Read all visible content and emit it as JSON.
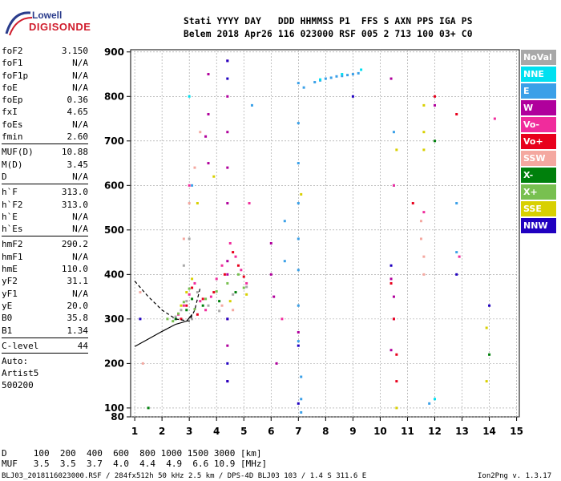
{
  "logo": {
    "line1": "Lowell",
    "line2": "DIGISONDE"
  },
  "header": {
    "line1": "Stati YYYY DAY   DDD HHMMSS P1  FFS S AXN PPS IGA PS",
    "line2": "Belem 2018 Apr26 116 023000 RSF 005 2 713 100 03+ C0"
  },
  "params": {
    "group1": [
      {
        "name": "foF2",
        "value": "3.150"
      },
      {
        "name": "foF1",
        "value": "N/A"
      },
      {
        "name": "foF1p",
        "value": "N/A"
      },
      {
        "name": "foE",
        "value": "N/A"
      },
      {
        "name": "foEp",
        "value": "0.36"
      },
      {
        "name": "fxI",
        "value": "4.65"
      },
      {
        "name": "foEs",
        "value": "N/A"
      },
      {
        "name": "fmin",
        "value": "2.60"
      }
    ],
    "group2": [
      {
        "name": "MUF(D)",
        "value": "10.88"
      },
      {
        "name": "M(D)",
        "value": "3.45"
      },
      {
        "name": "D",
        "value": "N/A"
      }
    ],
    "group3": [
      {
        "name": "h`F",
        "value": "313.0"
      },
      {
        "name": "h`F2",
        "value": "313.0"
      },
      {
        "name": "h`E",
        "value": "N/A"
      },
      {
        "name": "h`Es",
        "value": "N/A"
      }
    ],
    "group4": [
      {
        "name": "hmF2",
        "value": "290.2"
      },
      {
        "name": "hmF1",
        "value": "N/A"
      },
      {
        "name": "hmE",
        "value": "110.0"
      },
      {
        "name": "yF2",
        "value": "31.1"
      },
      {
        "name": "yF1",
        "value": "N/A"
      },
      {
        "name": "yE",
        "value": "20.0"
      },
      {
        "name": "B0",
        "value": "35.8"
      },
      {
        "name": "B1",
        "value": "1.34"
      }
    ],
    "group5": [
      {
        "name": "C-level",
        "value": "44"
      }
    ],
    "auto": [
      "Auto:",
      "Artist5",
      "500200"
    ]
  },
  "legend": [
    {
      "label": "NoVal",
      "color": "#a8a8a8"
    },
    {
      "label": "NNE",
      "color": "#00e0f0"
    },
    {
      "label": "E",
      "color": "#3aa0e8"
    },
    {
      "label": "W",
      "color": "#b0009c"
    },
    {
      "label": "Vo-",
      "color": "#f02c9c"
    },
    {
      "label": "Vo+",
      "color": "#e8001c"
    },
    {
      "label": "SSW",
      "color": "#f4a8a0"
    },
    {
      "label": "X-",
      "color": "#00800c"
    },
    {
      "label": "X+",
      "color": "#78c050"
    },
    {
      "label": "SSE",
      "color": "#d8d000"
    },
    {
      "label": "NNW",
      "color": "#2000c0"
    }
  ],
  "chart_data": {
    "type": "scatter",
    "title": "",
    "xlabel": "",
    "ylabel": "",
    "xlim": [
      0.85,
      15.1
    ],
    "ylim": [
      80,
      905
    ],
    "xticks": [
      1,
      2,
      3,
      4,
      5,
      6,
      7,
      8,
      9,
      10,
      11,
      12,
      13,
      14,
      15
    ],
    "yticks": [
      80,
      100,
      200,
      300,
      400,
      500,
      600,
      700,
      800,
      900
    ],
    "grid": true,
    "point_groups": [
      {
        "name": "NoVal",
        "color": "#a8a8a8",
        "x": [
          2.5,
          2.7,
          2.9,
          3.1,
          3.3,
          3.7,
          4.1,
          4.6,
          5.1,
          2.8,
          3.0
        ],
        "y": [
          305,
          320,
          340,
          300,
          360,
          330,
          318,
          355,
          372,
          420,
          480
        ]
      },
      {
        "name": "E",
        "color": "#3aa0e8",
        "x": [
          7.0,
          7.0,
          7.0,
          7.0,
          7.0,
          7.0,
          7.0,
          7.0,
          7.1,
          7.1,
          7.1,
          7.2,
          7.6,
          7.8,
          8.0,
          8.2,
          8.4,
          8.6,
          8.8,
          9.0,
          9.2,
          10.5,
          10.5,
          11.8,
          12.8,
          12.8,
          6.5,
          6.5,
          5.3,
          3.1
        ],
        "y": [
          830,
          740,
          650,
          560,
          480,
          410,
          330,
          250,
          170,
          120,
          90,
          820,
          832,
          836,
          840,
          842,
          845,
          846,
          848,
          850,
          852,
          720,
          600,
          110,
          560,
          450,
          520,
          430,
          780,
          600
        ]
      },
      {
        "name": "W",
        "color": "#b0009c",
        "x": [
          4.4,
          4.4,
          4.4,
          4.4,
          4.4,
          4.4,
          4.4,
          4.4,
          4.4,
          4.4,
          3.7,
          3.7,
          3.7,
          3.6,
          6.0,
          6.0,
          6.1,
          6.2,
          7.0,
          10.4,
          10.5,
          10.5,
          10.4,
          12.0,
          10.4
        ],
        "y": [
          880,
          800,
          720,
          640,
          560,
          430,
          400,
          300,
          240,
          160,
          850,
          760,
          650,
          710,
          470,
          400,
          350,
          200,
          270,
          390,
          350,
          300,
          230,
          780,
          840
        ]
      },
      {
        "name": "Vo-",
        "color": "#f02c9c",
        "x": [
          2.6,
          2.8,
          3.0,
          3.2,
          3.4,
          3.6,
          3.8,
          4.0,
          4.2,
          4.5,
          4.7,
          4.9,
          5.1,
          6.4,
          10.5,
          11.6,
          3.0,
          5.2,
          12.9,
          14.2
        ],
        "y": [
          310,
          330,
          355,
          380,
          340,
          320,
          350,
          390,
          420,
          470,
          440,
          410,
          380,
          300,
          600,
          540,
          600,
          560,
          440,
          750
        ]
      },
      {
        "name": "Vo+",
        "color": "#e8001c",
        "x": [
          2.7,
          2.9,
          3.1,
          3.3,
          3.5,
          3.9,
          4.3,
          4.6,
          4.8,
          5.0,
          10.4,
          10.5,
          10.6,
          10.6,
          11.2,
          12.0,
          12.8
        ],
        "y": [
          300,
          330,
          370,
          310,
          345,
          360,
          400,
          450,
          420,
          395,
          380,
          300,
          220,
          160,
          560,
          800,
          760
        ]
      },
      {
        "name": "SSW",
        "color": "#f4a8a0",
        "x": [
          2.8,
          3.0,
          3.2,
          3.4,
          4.2,
          4.6,
          11.5,
          11.5,
          11.6,
          11.6,
          1.2,
          1.3
        ],
        "y": [
          480,
          560,
          640,
          720,
          330,
          320,
          520,
          480,
          440,
          400,
          360,
          200
        ]
      },
      {
        "name": "X-",
        "color": "#00800c",
        "x": [
          2.5,
          2.9,
          3.1,
          3.5,
          4.1,
          4.7,
          12.0,
          14.0,
          1.5
        ],
        "y": [
          300,
          320,
          345,
          330,
          340,
          360,
          700,
          220,
          100
        ]
      },
      {
        "name": "X+",
        "color": "#78c050",
        "x": [
          2.4,
          2.6,
          2.8,
          3.0,
          3.2,
          3.6,
          4.0,
          4.4,
          4.8,
          5.0,
          2.2
        ],
        "y": [
          295,
          312,
          338,
          368,
          322,
          345,
          362,
          380,
          400,
          370,
          300
        ]
      },
      {
        "name": "SSE",
        "color": "#d8d000",
        "x": [
          2.7,
          2.9,
          3.1,
          3.3,
          3.9,
          4.5,
          5.1,
          10.6,
          10.6,
          11.6,
          11.6,
          11.6,
          13.9,
          13.9,
          7.1
        ],
        "y": [
          330,
          360,
          390,
          560,
          620,
          340,
          355,
          680,
          100,
          780,
          720,
          680,
          280,
          160,
          580
        ]
      },
      {
        "name": "NNW",
        "color": "#2000c0",
        "x": [
          4.4,
          4.4,
          4.4,
          4.4,
          4.4,
          7.0,
          7.0,
          10.4,
          14.0,
          12.8,
          9.0,
          1.2
        ],
        "y": [
          880,
          840,
          300,
          200,
          160,
          240,
          110,
          420,
          330,
          400,
          800,
          300
        ]
      },
      {
        "name": "NNE",
        "color": "#00e0f0",
        "x": [
          9.3,
          8.6,
          7.8,
          3.0,
          12.0
        ],
        "y": [
          860,
          850,
          838,
          800,
          120
        ]
      }
    ],
    "trace_lines": [
      {
        "name": "virtual height trace (dashed)",
        "style": "dashed",
        "color": "#000",
        "x": [
          1.0,
          1.5,
          2.0,
          2.5,
          3.0,
          3.2,
          3.4
        ],
        "y": [
          385,
          350,
          320,
          300,
          295,
          320,
          370
        ]
      },
      {
        "name": "real height profile (solid)",
        "style": "solid",
        "color": "#000",
        "x": [
          1.0,
          1.5,
          2.0,
          2.5,
          2.9,
          3.1
        ],
        "y": [
          238,
          255,
          272,
          288,
          295,
          310
        ]
      }
    ]
  },
  "footer": {
    "d_row": "D     100  200  400  600  800 1000 1500 3000 [km]",
    "muf_row": "MUF   3.5  3.5  3.7  4.0  4.4  4.9  6.6 10.9 [MHz]",
    "info": "BLJ03_2018116023000.RSF / 284fx512h 50 kHz 2.5 km / DPS-4D BLJ03 103 / 1.4 S 311.6 E",
    "version": "Ion2Png v. 1.3.17"
  }
}
